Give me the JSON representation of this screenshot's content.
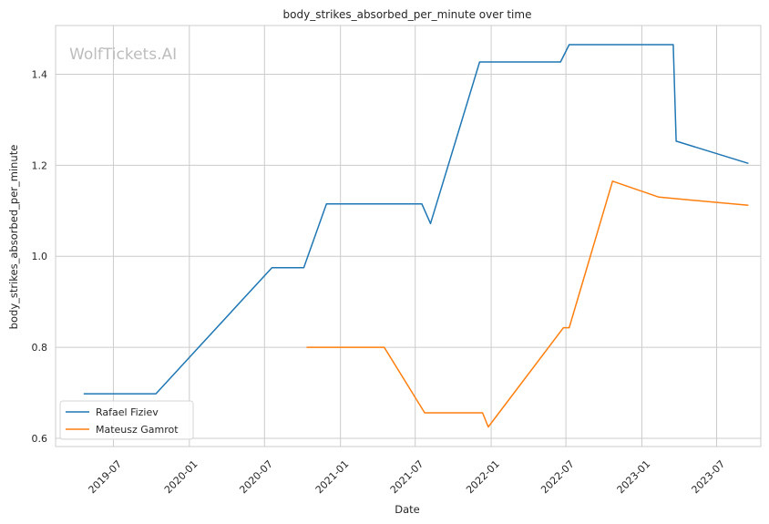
{
  "chart_data": {
    "type": "line",
    "title": "body_strikes_absorbed_per_minute over time",
    "xlabel": "Date",
    "ylabel": "body_strikes_absorbed_per_minute",
    "watermark": "WolfTickets.AI",
    "x_range": [
      "2019-02-11",
      "2023-10-16"
    ],
    "ylim": [
      0.582,
      1.507
    ],
    "x_ticks": [
      "2019-07",
      "2020-01",
      "2020-07",
      "2021-01",
      "2021-07",
      "2022-01",
      "2022-07",
      "2023-01",
      "2023-07"
    ],
    "y_ticks": [
      "0.6",
      "0.8",
      "1.0",
      "1.2",
      "1.4"
    ],
    "grid": true,
    "legend_position": "lower-left",
    "series": [
      {
        "name": "Rafael Fiziev",
        "color": "#1f77b4",
        "points": [
          [
            "2019-04-20",
            0.698
          ],
          [
            "2019-10-12",
            0.698
          ],
          [
            "2020-07-19",
            0.975
          ],
          [
            "2020-10-04",
            0.975
          ],
          [
            "2020-11-28",
            1.115
          ],
          [
            "2021-07-17",
            1.115
          ],
          [
            "2021-08-07",
            1.072
          ],
          [
            "2021-12-04",
            1.427
          ],
          [
            "2022-06-18",
            1.427
          ],
          [
            "2022-07-09",
            1.465
          ],
          [
            "2023-03-18",
            1.465
          ],
          [
            "2023-03-25",
            1.253
          ],
          [
            "2023-09-16",
            1.204
          ]
        ]
      },
      {
        "name": "Mateusz Gamrot",
        "color": "#ff7f0e",
        "points": [
          [
            "2020-10-11",
            0.8
          ],
          [
            "2021-04-17",
            0.8
          ],
          [
            "2021-07-24",
            0.656
          ],
          [
            "2021-12-11",
            0.656
          ],
          [
            "2021-12-25",
            0.625
          ],
          [
            "2022-06-25",
            0.843
          ],
          [
            "2022-07-09",
            0.843
          ],
          [
            "2022-10-22",
            1.165
          ],
          [
            "2023-02-11",
            1.13
          ],
          [
            "2023-09-16",
            1.112
          ]
        ]
      }
    ]
  }
}
